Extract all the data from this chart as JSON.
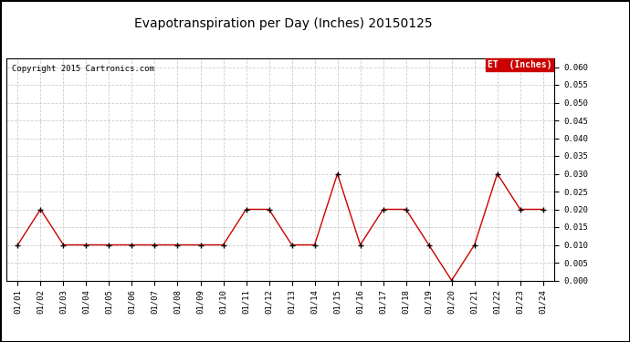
{
  "title": "Evapotranspiration per Day (Inches) 20150125",
  "copyright": "Copyright 2015 Cartronics.com",
  "legend_label": "ET  (Inches)",
  "legend_bg": "#CC0000",
  "legend_text_color": "#FFFFFF",
  "line_color": "#CC0000",
  "marker_color": "#000000",
  "x_labels": [
    "01/01",
    "01/02",
    "01/03",
    "01/04",
    "01/05",
    "01/06",
    "01/07",
    "01/08",
    "01/09",
    "01/10",
    "01/11",
    "01/12",
    "01/13",
    "01/14",
    "01/15",
    "01/16",
    "01/17",
    "01/18",
    "01/19",
    "01/20",
    "01/21",
    "01/22",
    "01/23",
    "01/24"
  ],
  "y_values": [
    0.01,
    0.02,
    0.01,
    0.01,
    0.01,
    0.01,
    0.01,
    0.01,
    0.01,
    0.01,
    0.02,
    0.02,
    0.01,
    0.01,
    0.03,
    0.01,
    0.02,
    0.02,
    0.01,
    0.0,
    0.01,
    0.03,
    0.02,
    0.02
  ],
  "ylim": [
    0.0,
    0.0625
  ],
  "yticks": [
    0.0,
    0.005,
    0.01,
    0.015,
    0.02,
    0.025,
    0.03,
    0.035,
    0.04,
    0.045,
    0.05,
    0.055,
    0.06
  ],
  "grid_color": "#CCCCCC",
  "bg_color": "#FFFFFF",
  "fig_bg_color": "#FFFFFF",
  "border_color": "#000000",
  "title_fontsize": 10,
  "tick_fontsize": 6.5,
  "copyright_fontsize": 6.5
}
